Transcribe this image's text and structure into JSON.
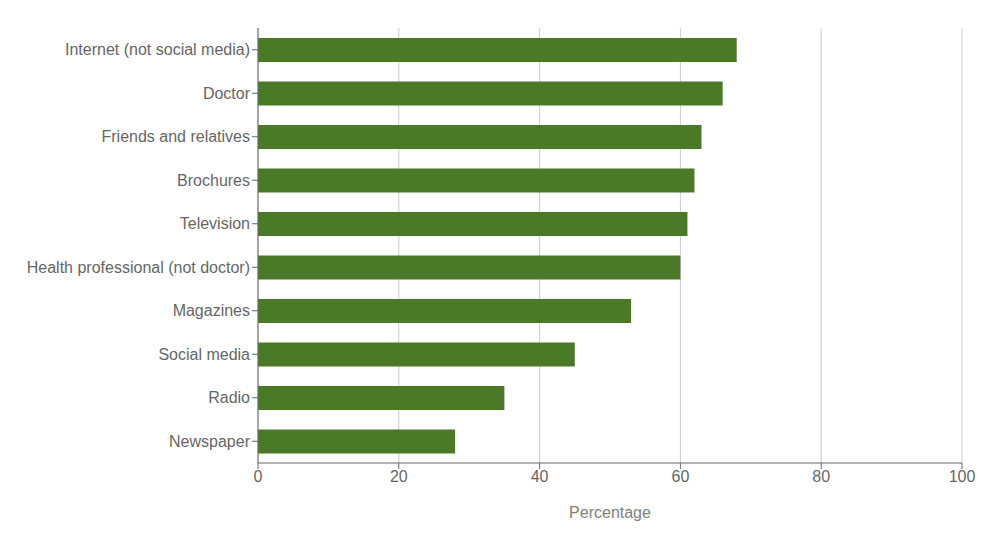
{
  "chart_data": {
    "type": "bar",
    "orientation": "horizontal",
    "categories": [
      "Newspaper",
      "Radio",
      "Social media",
      "Magazines",
      "Health professional (not doctor)",
      "Television",
      "Brochures",
      "Friends and relatives",
      "Doctor",
      "Internet (not social media)"
    ],
    "values": [
      28,
      35,
      45,
      53,
      60,
      61,
      62,
      63,
      66,
      68
    ],
    "color": "#4a7a28",
    "xlabel": "Percentage",
    "xlim": [
      0,
      100
    ],
    "xticks": [
      0,
      20,
      40,
      60,
      80,
      100
    ],
    "grid": true
  }
}
